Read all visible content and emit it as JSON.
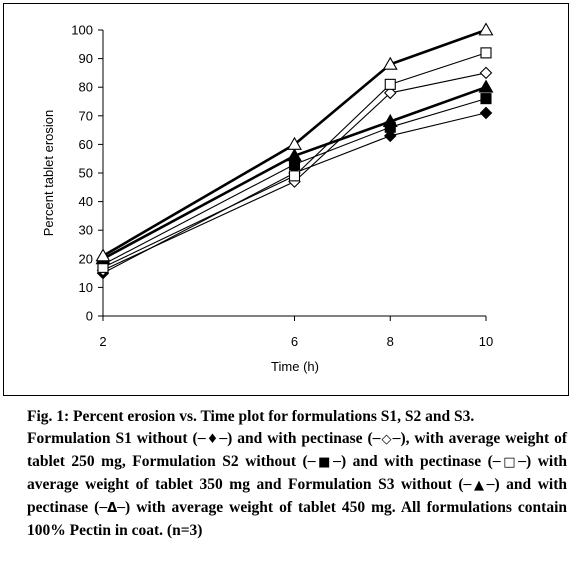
{
  "chart_data": {
    "type": "line",
    "title": "",
    "xlabel": "Time (h)",
    "ylabel": "Percent tablet erosion",
    "x": [
      2,
      6,
      8,
      10
    ],
    "xlim": [
      2,
      10
    ],
    "ylim": [
      0,
      100
    ],
    "yticks": [
      0,
      10,
      20,
      30,
      40,
      50,
      60,
      70,
      80,
      90,
      100
    ],
    "xticks": [
      2,
      6,
      8,
      10
    ],
    "grid": false,
    "legend": "none",
    "series": [
      {
        "marker": "diamond-filled",
        "values": [
          15,
          50,
          63,
          71
        ],
        "bold": false
      },
      {
        "marker": "diamond-open",
        "values": [
          16,
          47,
          78,
          85
        ],
        "bold": false
      },
      {
        "marker": "square-filled",
        "values": [
          18,
          53,
          66,
          76
        ],
        "bold": false
      },
      {
        "marker": "square-open",
        "values": [
          17,
          49,
          81,
          92
        ],
        "bold": false
      },
      {
        "marker": "triangle-filled",
        "values": [
          20,
          56,
          68,
          80
        ],
        "bold": true
      },
      {
        "marker": "triangle-open",
        "values": [
          21,
          60,
          88,
          100
        ],
        "bold": true
      }
    ]
  },
  "caption": {
    "title": "Fig. 1: Percent erosion vs. Time plot for formulations S1, S2 and S3.",
    "part1": "Formulation S1 without (",
    "sym1": "─♦─",
    "part2": ") and with pectinase (",
    "sym2": "─◇─",
    "part3": "), with average weight of tablet 250 mg, Formulation S2 without (",
    "sym3": "─■─",
    "part4": ") and with pectinase (",
    "sym4": "─□─",
    "part5": ") with average weight of tablet 350 mg and Formulation S3 without (",
    "sym5": "─▲─",
    "part6": ") and with pectinase (",
    "sym6": "─Δ─",
    "part7": ") with average weight of tablet 450 mg. All formulations contain 100% Pectin in coat. (n=3)"
  }
}
